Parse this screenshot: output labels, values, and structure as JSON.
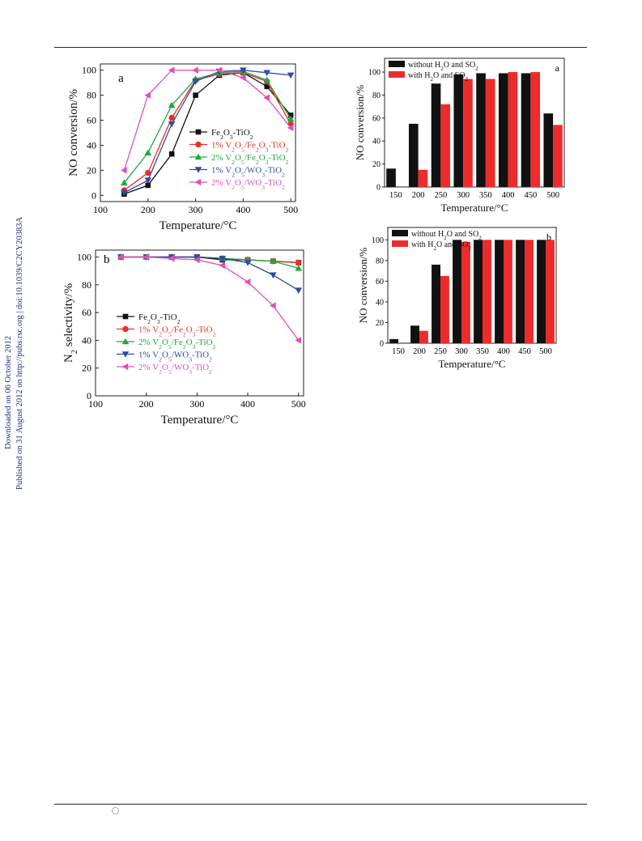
{
  "page": {
    "side_line_1": "Published on 31 August 2012 on http://pubs.rsc.org | doi:10.1039/C2CY20383A",
    "side_line_2": "Downloaded on 06 October 2012"
  },
  "colors": {
    "black": "#111111",
    "red": "#ee2b2b",
    "green": "#1aab3a",
    "blue": "#2f4ba6",
    "pink": "#e04fb6",
    "side_text": "#1f2b8c"
  },
  "chart_data": [
    {
      "type": "line",
      "panel": "a",
      "xlabel": "Temperature/°C",
      "ylabel": "NO conversion/%",
      "xlim": [
        100,
        510
      ],
      "ylim": [
        -5,
        105
      ],
      "xticks": [
        100,
        200,
        300,
        400,
        500
      ],
      "yticks": [
        0,
        20,
        40,
        60,
        80,
        100
      ],
      "legend_position": "center-right",
      "x": [
        150,
        200,
        250,
        300,
        350,
        400,
        450,
        500
      ],
      "series": [
        {
          "name": "Fe2O3-TiO2",
          "marker": "square",
          "color": "#111111",
          "values": [
            1,
            8,
            33,
            80,
            96,
            98,
            87,
            64
          ]
        },
        {
          "name": "1% V2O5/Fe2O3-TiO2",
          "marker": "circle",
          "color": "#ee2b2b",
          "values": [
            4,
            18,
            62,
            92,
            97,
            98,
            91,
            57
          ]
        },
        {
          "name": "2% V2O5/Fe2O3-TiO2",
          "marker": "triangle-up",
          "color": "#1aab3a",
          "values": [
            10,
            34,
            72,
            93,
            98,
            99,
            92,
            61
          ]
        },
        {
          "name": "1% V2O5/WO3-TiO2",
          "marker": "triangle-down",
          "color": "#2f4ba6",
          "values": [
            2,
            12,
            57,
            91,
            99,
            100,
            98,
            96
          ]
        },
        {
          "name": "2% V2O5/WO3-TiO2",
          "marker": "triangle-left",
          "color": "#e04fb6",
          "values": [
            20,
            80,
            100,
            100,
            100,
            94,
            78,
            54
          ]
        }
      ]
    },
    {
      "type": "line",
      "panel": "b",
      "xlabel": "Temperature/°C",
      "ylabel": "N2 selectivity/%",
      "xlim": [
        100,
        510
      ],
      "ylim": [
        0,
        105
      ],
      "xticks": [
        100,
        200,
        300,
        400,
        500
      ],
      "yticks": [
        0,
        20,
        40,
        60,
        80,
        100
      ],
      "legend_position": "center-left",
      "x": [
        150,
        200,
        250,
        300,
        350,
        400,
        450,
        500
      ],
      "series": [
        {
          "name": "Fe2O3-TiO2",
          "marker": "square",
          "color": "#111111",
          "values": [
            100,
            100,
            100,
            100,
            98,
            98,
            97,
            96
          ]
        },
        {
          "name": "1% V2O5/Fe2O3-TiO2",
          "marker": "circle",
          "color": "#ee2b2b",
          "values": [
            100,
            100,
            100,
            100,
            99,
            98,
            97,
            96
          ]
        },
        {
          "name": "2% V2O5/Fe2O3-TiO2",
          "marker": "triangle-up",
          "color": "#1aab3a",
          "values": [
            100,
            100,
            100,
            100,
            99,
            98,
            97,
            92
          ]
        },
        {
          "name": "1% V2O5/WO3-TiO2",
          "marker": "triangle-down",
          "color": "#2f4ba6",
          "values": [
            100,
            100,
            100,
            100,
            99,
            96,
            87,
            76
          ]
        },
        {
          "name": "2% V2O5/WO3-TiO2",
          "marker": "triangle-left",
          "color": "#e04fb6",
          "values": [
            100,
            100,
            99,
            98,
            94,
            82,
            65,
            40
          ]
        }
      ]
    },
    {
      "type": "bar",
      "panel": "a",
      "xlabel": "Temperature/°C",
      "ylabel": "NO conversion/%",
      "ylim": [
        0,
        112
      ],
      "yticks": [
        0,
        20,
        40,
        60,
        80,
        100
      ],
      "legend_position": "top-left",
      "categories": [
        "150",
        "200",
        "250",
        "300",
        "350",
        "400",
        "450",
        "500"
      ],
      "series": [
        {
          "name": "without H2O and SO2",
          "color": "#111111",
          "values": [
            16,
            55,
            90,
            98,
            99,
            99,
            99,
            64
          ]
        },
        {
          "name": "with H2O and SO2",
          "color": "#ee2b2b",
          "values": [
            0,
            15,
            72,
            94,
            94,
            100,
            100,
            54
          ]
        }
      ]
    },
    {
      "type": "bar",
      "panel": "b",
      "xlabel": "Temperature/°C",
      "ylabel": "NO conversion/%",
      "ylim": [
        0,
        112
      ],
      "yticks": [
        0,
        20,
        40,
        60,
        80,
        100
      ],
      "legend_position": "top-left",
      "categories": [
        "150",
        "200",
        "250",
        "300",
        "350",
        "400",
        "450",
        "500"
      ],
      "series": [
        {
          "name": "without H2O and SO2",
          "color": "#111111",
          "values": [
            4,
            17,
            76,
            100,
            100,
            100,
            100,
            100
          ]
        },
        {
          "name": "with H2O and SO2",
          "color": "#ee2b2b",
          "values": [
            0,
            12,
            65,
            98,
            100,
            100,
            100,
            100
          ]
        }
      ]
    }
  ]
}
